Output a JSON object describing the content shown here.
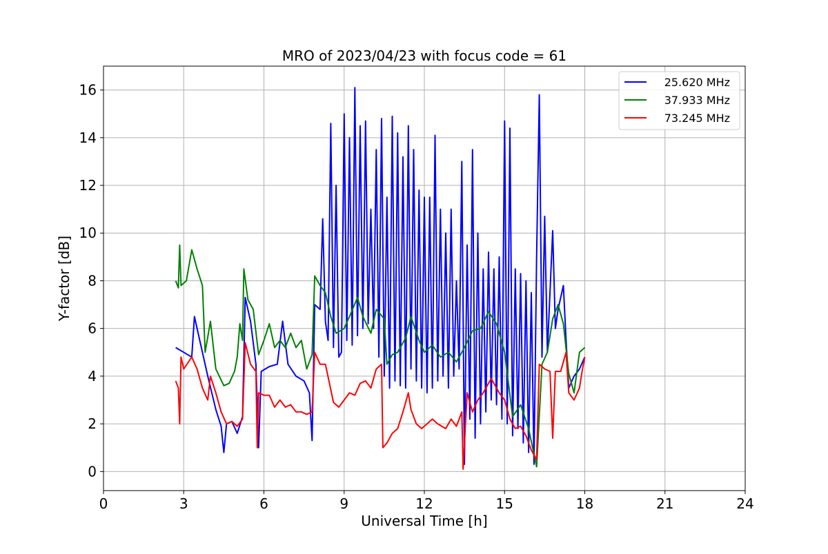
{
  "chart_data": {
    "type": "line",
    "title": "MRO of 2023/04/23 with focus code = 61",
    "xlabel": "Universal Time [h]",
    "ylabel": "Y-factor [dB]",
    "xlim": [
      0,
      24
    ],
    "ylim": [
      -0.8,
      17
    ],
    "xticks": [
      0,
      3,
      6,
      9,
      12,
      15,
      18,
      21,
      24
    ],
    "yticks": [
      0,
      2,
      4,
      6,
      8,
      10,
      12,
      14,
      16
    ],
    "grid": true,
    "legend_position": "top-right",
    "series": [
      {
        "name": "25.620 MHz",
        "color": "#0000ff",
        "points": [
          [
            2.7,
            5.2
          ],
          [
            3.0,
            5.0
          ],
          [
            3.3,
            4.8
          ],
          [
            3.4,
            6.5
          ],
          [
            3.6,
            5.5
          ],
          [
            3.9,
            4.0
          ],
          [
            4.2,
            2.6
          ],
          [
            4.4,
            1.9
          ],
          [
            4.5,
            0.8
          ],
          [
            4.6,
            2.0
          ],
          [
            4.8,
            2.1
          ],
          [
            5.0,
            1.6
          ],
          [
            5.2,
            2.3
          ],
          [
            5.3,
            7.3
          ],
          [
            5.5,
            6.3
          ],
          [
            5.7,
            4.5
          ],
          [
            5.8,
            1.0
          ],
          [
            5.9,
            4.2
          ],
          [
            6.2,
            4.4
          ],
          [
            6.5,
            4.5
          ],
          [
            6.7,
            6.3
          ],
          [
            6.9,
            4.5
          ],
          [
            7.2,
            4.0
          ],
          [
            7.5,
            3.8
          ],
          [
            7.7,
            3.3
          ],
          [
            7.8,
            1.3
          ],
          [
            7.9,
            7.0
          ],
          [
            8.1,
            6.8
          ],
          [
            8.2,
            10.6
          ],
          [
            8.3,
            6.3
          ],
          [
            8.4,
            5.5
          ],
          [
            8.5,
            14.6
          ],
          [
            8.6,
            5.2
          ],
          [
            8.7,
            12.0
          ],
          [
            8.8,
            4.8
          ],
          [
            8.9,
            5.0
          ],
          [
            9.0,
            15.0
          ],
          [
            9.1,
            5.5
          ],
          [
            9.2,
            14.0
          ],
          [
            9.3,
            5.3
          ],
          [
            9.4,
            16.1
          ],
          [
            9.5,
            5.7
          ],
          [
            9.6,
            14.5
          ],
          [
            9.7,
            6.0
          ],
          [
            9.8,
            14.7
          ],
          [
            9.9,
            6.2
          ],
          [
            10.0,
            11.0
          ],
          [
            10.1,
            6.0
          ],
          [
            10.2,
            13.5
          ],
          [
            10.3,
            4.8
          ],
          [
            10.4,
            14.8
          ],
          [
            10.5,
            4.0
          ],
          [
            10.6,
            11.5
          ],
          [
            10.7,
            3.5
          ],
          [
            10.8,
            14.9
          ],
          [
            10.9,
            3.8
          ],
          [
            11.0,
            14.2
          ],
          [
            11.1,
            3.6
          ],
          [
            11.2,
            13.2
          ],
          [
            11.3,
            3.5
          ],
          [
            11.4,
            14.5
          ],
          [
            11.5,
            4.3
          ],
          [
            11.6,
            13.5
          ],
          [
            11.7,
            3.8
          ],
          [
            11.8,
            11.8
          ],
          [
            11.9,
            3.5
          ],
          [
            12.0,
            11.5
          ],
          [
            12.1,
            3.3
          ],
          [
            12.2,
            11.5
          ],
          [
            12.3,
            3.5
          ],
          [
            12.4,
            14.1
          ],
          [
            12.5,
            3.8
          ],
          [
            12.6,
            11.0
          ],
          [
            12.7,
            4.0
          ],
          [
            12.8,
            10.0
          ],
          [
            12.9,
            3.5
          ],
          [
            13.0,
            11.0
          ],
          [
            13.1,
            4.0
          ],
          [
            13.2,
            8.0
          ],
          [
            13.3,
            4.3
          ],
          [
            13.4,
            13.0
          ],
          [
            13.5,
            0.3
          ],
          [
            13.6,
            9.5
          ],
          [
            13.7,
            2.2
          ],
          [
            13.8,
            13.5
          ],
          [
            13.9,
            1.4
          ],
          [
            14.0,
            10.0
          ],
          [
            14.1,
            2.0
          ],
          [
            14.2,
            8.5
          ],
          [
            14.3,
            2.5
          ],
          [
            14.4,
            9.2
          ],
          [
            14.5,
            3.0
          ],
          [
            14.6,
            8.5
          ],
          [
            14.7,
            2.8
          ],
          [
            14.8,
            9.0
          ],
          [
            14.9,
            2.2
          ],
          [
            15.0,
            14.7
          ],
          [
            15.1,
            2.0
          ],
          [
            15.2,
            14.4
          ],
          [
            15.3,
            1.5
          ],
          [
            15.4,
            8.5
          ],
          [
            15.5,
            1.8
          ],
          [
            15.6,
            8.3
          ],
          [
            15.7,
            1.2
          ],
          [
            15.8,
            8.0
          ],
          [
            15.9,
            0.8
          ],
          [
            16.0,
            7.5
          ],
          [
            16.1,
            0.3
          ],
          [
            16.2,
            9.0
          ],
          [
            16.3,
            15.8
          ],
          [
            16.4,
            4.8
          ],
          [
            16.5,
            10.7
          ],
          [
            16.6,
            5.0
          ],
          [
            16.8,
            10.1
          ],
          [
            16.9,
            6.0
          ],
          [
            17.0,
            6.8
          ],
          [
            17.2,
            7.8
          ],
          [
            17.3,
            5.5
          ],
          [
            17.4,
            3.5
          ],
          [
            17.6,
            4.0
          ],
          [
            17.8,
            4.3
          ],
          [
            18.0,
            4.8
          ]
        ]
      },
      {
        "name": "37.933 MHz",
        "color": "#008000",
        "points": [
          [
            2.7,
            8.0
          ],
          [
            2.8,
            7.7
          ],
          [
            2.85,
            9.5
          ],
          [
            2.9,
            7.8
          ],
          [
            3.1,
            8.0
          ],
          [
            3.3,
            9.3
          ],
          [
            3.5,
            8.5
          ],
          [
            3.7,
            7.8
          ],
          [
            3.8,
            5.0
          ],
          [
            4.0,
            6.3
          ],
          [
            4.2,
            4.3
          ],
          [
            4.5,
            3.6
          ],
          [
            4.7,
            3.7
          ],
          [
            4.9,
            4.2
          ],
          [
            5.0,
            4.8
          ],
          [
            5.1,
            6.2
          ],
          [
            5.2,
            5.5
          ],
          [
            5.25,
            8.5
          ],
          [
            5.4,
            7.2
          ],
          [
            5.6,
            6.8
          ],
          [
            5.8,
            4.9
          ],
          [
            6.0,
            5.5
          ],
          [
            6.2,
            6.2
          ],
          [
            6.4,
            5.2
          ],
          [
            6.6,
            5.5
          ],
          [
            6.8,
            5.2
          ],
          [
            7.0,
            5.8
          ],
          [
            7.2,
            5.2
          ],
          [
            7.4,
            5.5
          ],
          [
            7.6,
            4.3
          ],
          [
            7.8,
            4.9
          ],
          [
            7.9,
            8.2
          ],
          [
            8.1,
            7.8
          ],
          [
            8.3,
            7.5
          ],
          [
            8.5,
            6.5
          ],
          [
            8.7,
            5.8
          ],
          [
            9.0,
            6.0
          ],
          [
            9.2,
            6.5
          ],
          [
            9.5,
            7.3
          ],
          [
            9.7,
            6.5
          ],
          [
            10.0,
            5.8
          ],
          [
            10.2,
            6.8
          ],
          [
            10.5,
            6.4
          ],
          [
            10.6,
            4.5
          ],
          [
            10.8,
            4.9
          ],
          [
            11.0,
            5.0
          ],
          [
            11.3,
            5.6
          ],
          [
            11.5,
            6.5
          ],
          [
            11.8,
            5.5
          ],
          [
            12.0,
            5.0
          ],
          [
            12.3,
            5.3
          ],
          [
            12.6,
            4.8
          ],
          [
            12.9,
            5.0
          ],
          [
            13.2,
            4.6
          ],
          [
            13.5,
            5.2
          ],
          [
            13.8,
            5.9
          ],
          [
            14.1,
            6.0
          ],
          [
            14.4,
            6.7
          ],
          [
            14.7,
            6.2
          ],
          [
            15.0,
            5.0
          ],
          [
            15.3,
            2.3
          ],
          [
            15.6,
            2.8
          ],
          [
            15.9,
            1.8
          ],
          [
            16.2,
            0.2
          ],
          [
            16.4,
            4.5
          ],
          [
            16.6,
            5.0
          ],
          [
            16.8,
            6.4
          ],
          [
            17.0,
            7.0
          ],
          [
            17.2,
            6.2
          ],
          [
            17.4,
            4.1
          ],
          [
            17.6,
            3.3
          ],
          [
            17.8,
            5.0
          ],
          [
            18.0,
            5.2
          ]
        ]
      },
      {
        "name": "73.245 MHz",
        "color": "#ff0000",
        "points": [
          [
            2.7,
            3.8
          ],
          [
            2.8,
            3.5
          ],
          [
            2.85,
            2.0
          ],
          [
            2.9,
            4.8
          ],
          [
            3.0,
            4.3
          ],
          [
            3.3,
            4.8
          ],
          [
            3.5,
            4.3
          ],
          [
            3.7,
            3.5
          ],
          [
            3.9,
            3.0
          ],
          [
            4.0,
            4.0
          ],
          [
            4.2,
            3.3
          ],
          [
            4.4,
            2.5
          ],
          [
            4.6,
            2.0
          ],
          [
            4.8,
            2.1
          ],
          [
            5.0,
            1.9
          ],
          [
            5.2,
            2.2
          ],
          [
            5.3,
            5.4
          ],
          [
            5.5,
            4.5
          ],
          [
            5.7,
            4.2
          ],
          [
            5.75,
            1.0
          ],
          [
            5.8,
            3.3
          ],
          [
            6.0,
            3.2
          ],
          [
            6.2,
            3.2
          ],
          [
            6.4,
            2.7
          ],
          [
            6.6,
            3.0
          ],
          [
            6.8,
            2.7
          ],
          [
            7.0,
            2.8
          ],
          [
            7.2,
            2.5
          ],
          [
            7.4,
            2.5
          ],
          [
            7.6,
            2.4
          ],
          [
            7.8,
            2.5
          ],
          [
            7.9,
            5.0
          ],
          [
            8.1,
            4.5
          ],
          [
            8.3,
            4.5
          ],
          [
            8.6,
            2.9
          ],
          [
            8.8,
            2.7
          ],
          [
            9.0,
            3.0
          ],
          [
            9.2,
            3.3
          ],
          [
            9.4,
            3.2
          ],
          [
            9.6,
            3.7
          ],
          [
            9.8,
            3.8
          ],
          [
            10.0,
            3.5
          ],
          [
            10.2,
            4.3
          ],
          [
            10.4,
            4.5
          ],
          [
            10.45,
            1.0
          ],
          [
            10.6,
            1.2
          ],
          [
            10.8,
            1.6
          ],
          [
            11.0,
            1.8
          ],
          [
            11.2,
            2.5
          ],
          [
            11.4,
            3.3
          ],
          [
            11.5,
            2.6
          ],
          [
            11.7,
            2.0
          ],
          [
            11.9,
            1.8
          ],
          [
            12.1,
            2.0
          ],
          [
            12.3,
            2.2
          ],
          [
            12.5,
            2.0
          ],
          [
            12.8,
            1.8
          ],
          [
            13.0,
            2.2
          ],
          [
            13.2,
            1.9
          ],
          [
            13.4,
            2.5
          ],
          [
            13.45,
            0.1
          ],
          [
            13.6,
            3.3
          ],
          [
            13.8,
            2.5
          ],
          [
            14.0,
            3.0
          ],
          [
            14.2,
            3.3
          ],
          [
            14.5,
            3.9
          ],
          [
            14.8,
            3.3
          ],
          [
            15.0,
            3.0
          ],
          [
            15.2,
            2.2
          ],
          [
            15.4,
            1.8
          ],
          [
            15.6,
            1.9
          ],
          [
            15.8,
            1.5
          ],
          [
            16.0,
            0.9
          ],
          [
            16.2,
            0.5
          ],
          [
            16.3,
            4.5
          ],
          [
            16.5,
            4.3
          ],
          [
            16.7,
            4.2
          ],
          [
            16.8,
            1.4
          ],
          [
            16.9,
            4.2
          ],
          [
            17.1,
            4.2
          ],
          [
            17.3,
            5.0
          ],
          [
            17.4,
            3.3
          ],
          [
            17.6,
            3.0
          ],
          [
            17.8,
            3.5
          ],
          [
            17.9,
            4.2
          ],
          [
            18.0,
            4.8
          ]
        ]
      }
    ]
  }
}
